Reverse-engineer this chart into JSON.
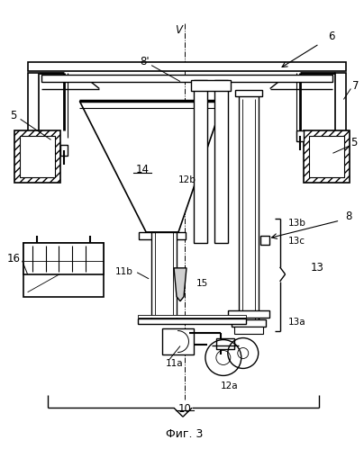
{
  "title": "Фиг. 3",
  "background_color": "#ffffff",
  "line_color": "#000000",
  "labels": {
    "5_left": "5",
    "5_right": "5",
    "6": "6",
    "7": "7",
    "8": "8",
    "8prime": "8'",
    "10": "10",
    "11a": "11a",
    "11b": "11b",
    "12a": "12a",
    "12b": "12b",
    "13": "13",
    "13a": "13a",
    "13b": "13b",
    "13c": "13c",
    "14": "14",
    "15": "15",
    "16": "16",
    "V": "V"
  },
  "figsize": [
    4.04,
    4.99
  ],
  "dpi": 100
}
